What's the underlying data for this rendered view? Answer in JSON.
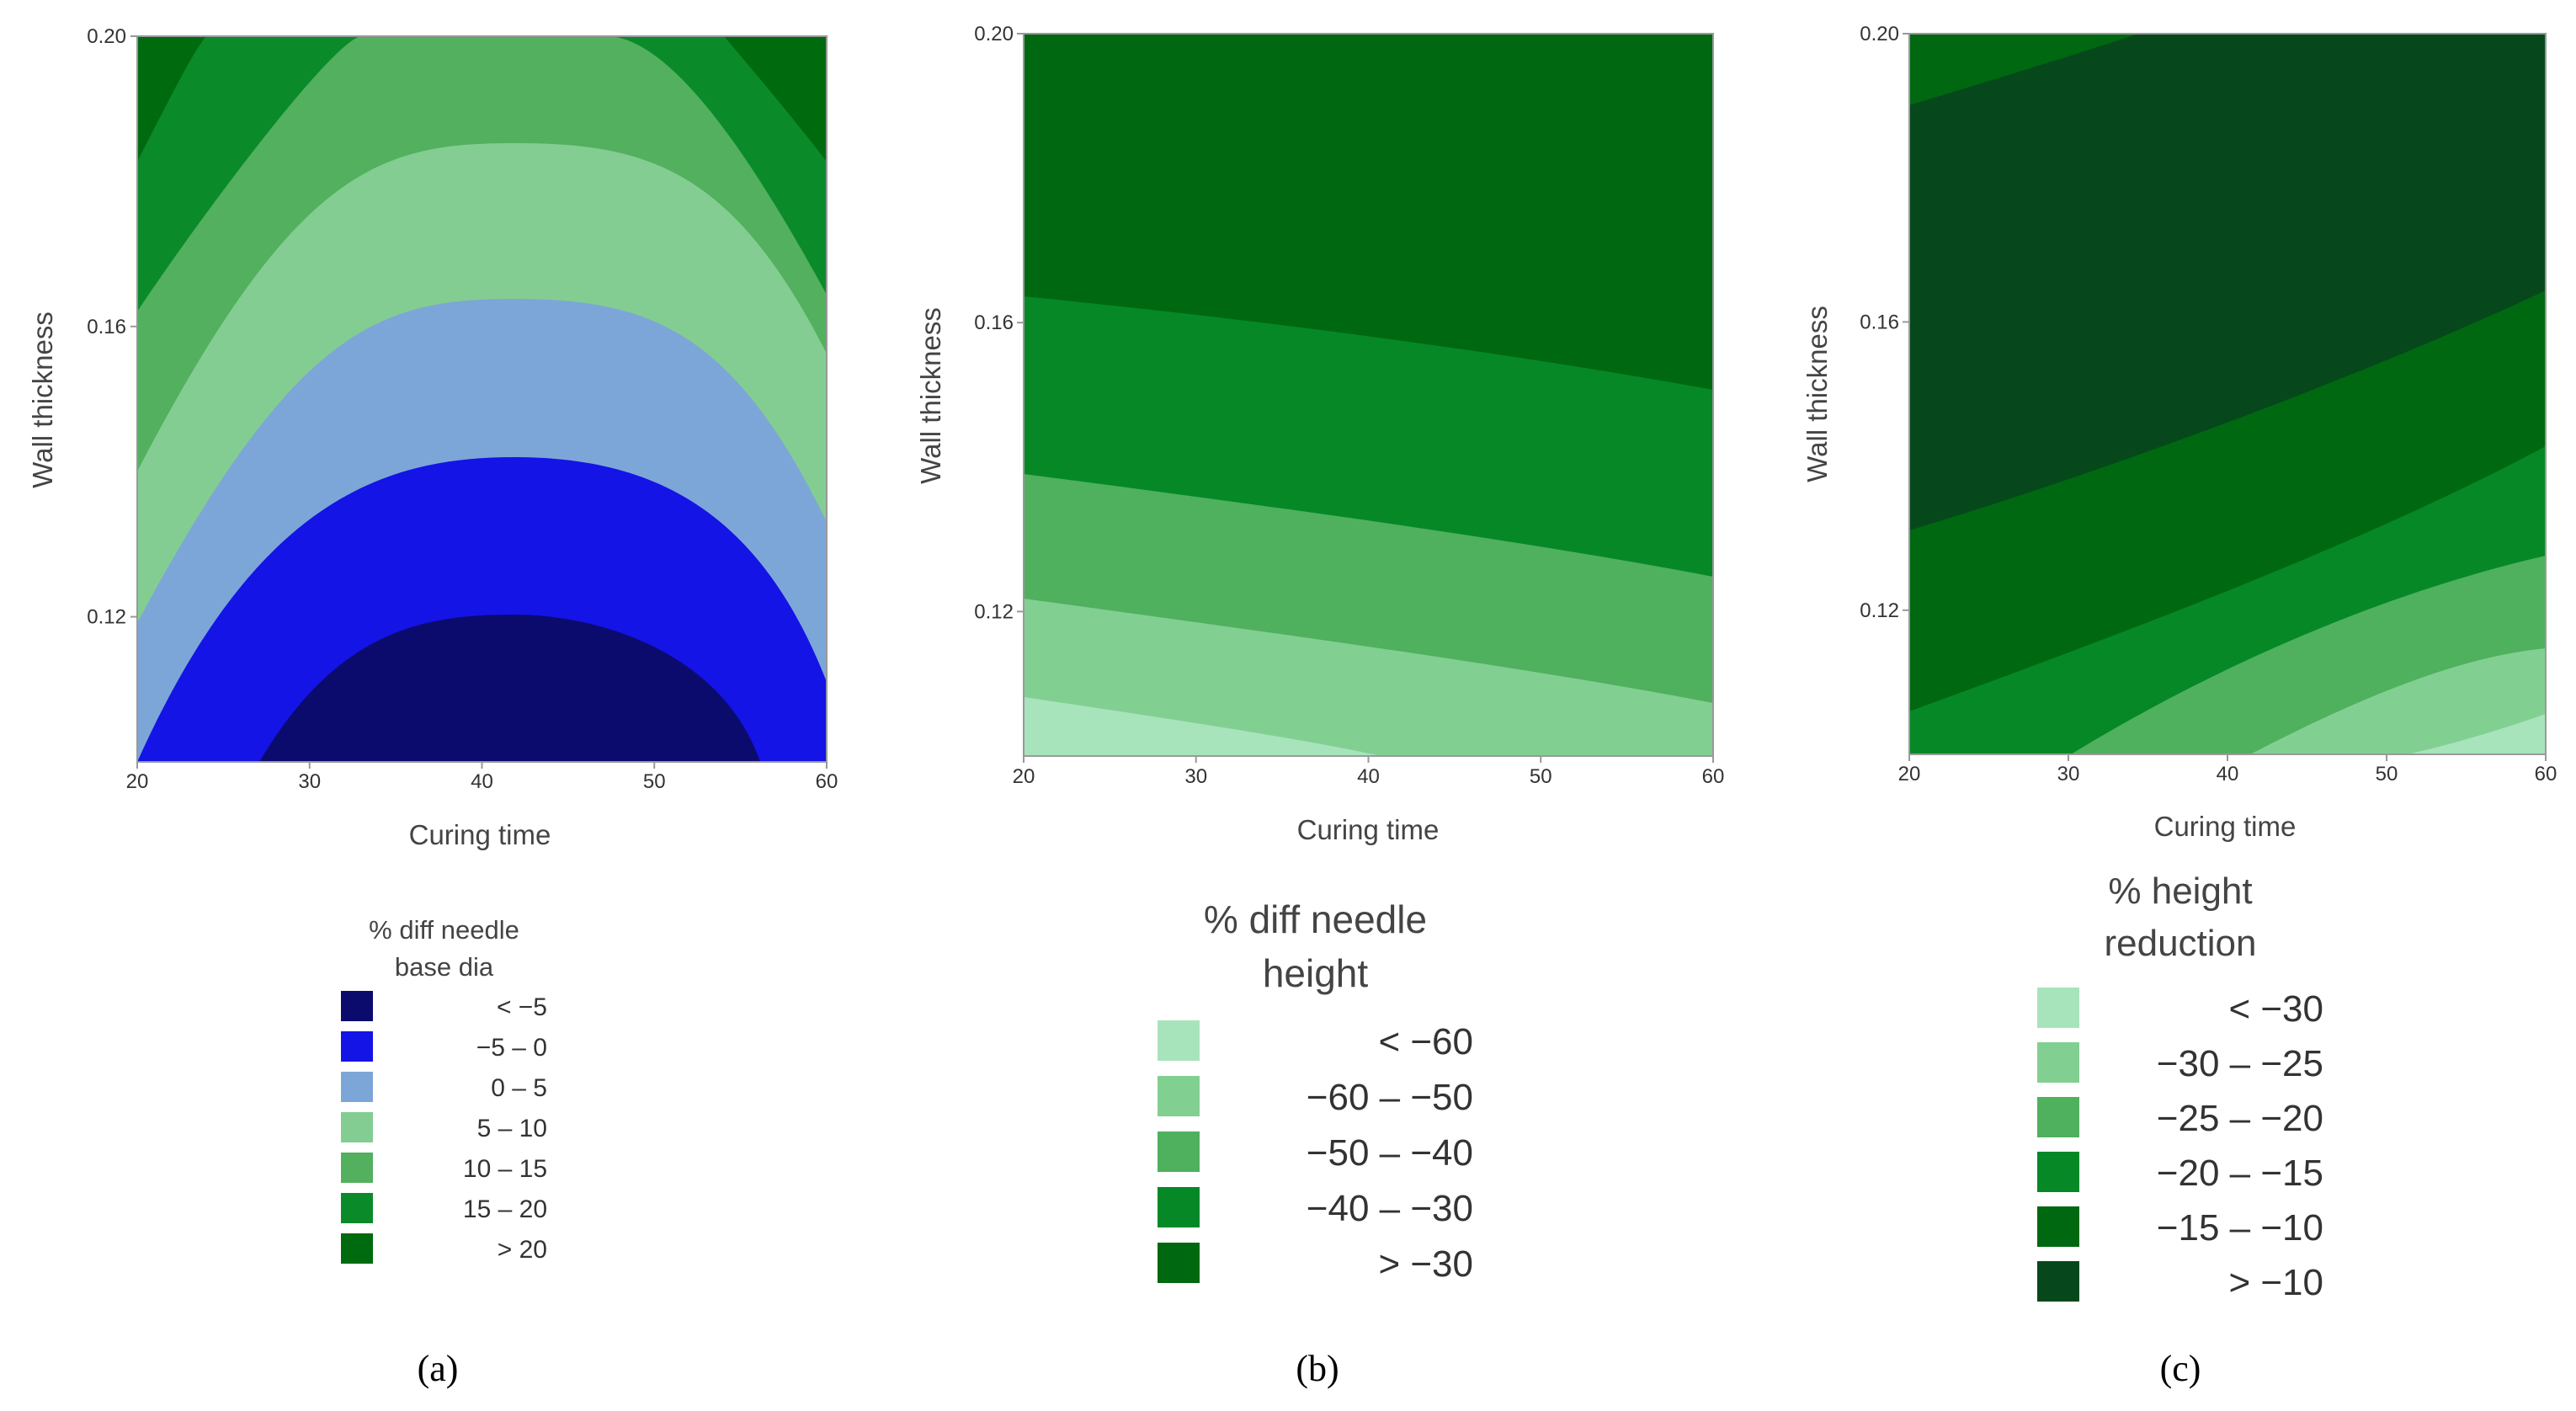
{
  "chart_data": [
    {
      "type": "contour",
      "id": "a",
      "caption": "(a)",
      "xlabel": "Curing time",
      "ylabel": "Wall thickness",
      "xlim": [
        20,
        60
      ],
      "ylim": [
        0.1,
        0.2
      ],
      "xticks": [
        "20",
        "30",
        "40",
        "50",
        "60"
      ],
      "yticks": [
        "0.12",
        "0.16",
        "0.20"
      ],
      "legend_title": [
        "% diff needle",
        "base dia"
      ],
      "legend": [
        {
          "label": "<  −5",
          "color": "#0b0b6e"
        },
        {
          "label": "−5 –  0",
          "color": "#1414e6"
        },
        {
          "label": "0 –  5",
          "color": "#7ca6d8"
        },
        {
          "label": "5 –  10",
          "color": "#83cd92"
        },
        {
          "label": "10 –  15",
          "color": "#52b05e"
        },
        {
          "label": "15 –  20",
          "color": "#0b8a2a"
        },
        {
          "label": ">  20",
          "color": "#006a0e"
        }
      ],
      "contours": [
        {
          "level": -5,
          "curing_time": [
            27,
            30,
            35,
            42,
            50,
            55,
            56
          ],
          "wall_thickness": [
            0.1,
            0.1055,
            0.1145,
            0.12,
            0.1145,
            0.1025,
            0.1
          ]
        },
        {
          "level": 0,
          "curing_time": [
            20,
            25,
            30,
            42,
            55,
            60
          ],
          "wall_thickness": [
            0.1,
            0.11,
            0.128,
            0.1415,
            0.125,
            0.1085
          ]
        },
        {
          "level": 5,
          "curing_time": [
            20,
            25,
            30,
            42,
            55,
            60
          ],
          "wall_thickness": [
            0.1185,
            0.1325,
            0.148,
            0.1635,
            0.148,
            0.1325
          ]
        },
        {
          "level": 10,
          "curing_time": [
            20,
            25,
            30,
            42,
            55,
            60
          ],
          "wall_thickness": [
            0.14,
            0.1545,
            0.17,
            0.1855,
            0.17,
            0.1545
          ]
        },
        {
          "level": 15,
          "curing_time": [
            20,
            25,
            30,
            35,
            50,
            55,
            60
          ],
          "wall_thickness": [
            0.162,
            0.1765,
            0.192,
            0.2,
            0.2,
            0.192,
            0.1765
          ]
        },
        {
          "level": 20,
          "curing_time": [
            20,
            21,
            23,
            24
          ],
          "wall_thickness": [
            0.184,
            0.19,
            0.2,
            0.2
          ]
        }
      ]
    },
    {
      "type": "contour",
      "id": "b",
      "caption": "(b)",
      "xlabel": "Curing time",
      "ylabel": "Wall thickness",
      "xlim": [
        20,
        60
      ],
      "ylim": [
        0.1,
        0.2
      ],
      "xticks": [
        "20",
        "30",
        "40",
        "50",
        "60"
      ],
      "yticks": [
        "0.12",
        "0.16",
        "0.20"
      ],
      "legend_title": [
        "% diff needle",
        "height"
      ],
      "legend": [
        {
          "label": "<  −60",
          "color": "#a8e4bb"
        },
        {
          "label": "−60  –  −50",
          "color": "#82cf92"
        },
        {
          "label": "−50  –  −40",
          "color": "#4fb05e"
        },
        {
          "label": "−40  –  −30",
          "color": "#068827"
        },
        {
          "label": ">  −30",
          "color": "#006810"
        }
      ],
      "contours": [
        {
          "level": -60,
          "curing_time": [
            20,
            40
          ],
          "wall_thickness": [
            0.1075,
            0.1
          ]
        },
        {
          "level": -50,
          "curing_time": [
            20,
            60
          ],
          "wall_thickness": [
            0.1225,
            0.1075
          ]
        },
        {
          "level": -40,
          "curing_time": [
            20,
            60
          ],
          "wall_thickness": [
            0.139,
            0.1245
          ]
        },
        {
          "level": -30,
          "curing_time": [
            20,
            60
          ],
          "wall_thickness": [
            0.164,
            0.1505
          ]
        }
      ]
    },
    {
      "type": "contour",
      "id": "c",
      "caption": "(c)",
      "xlabel": "Curing time",
      "ylabel": "Wall thickness",
      "xlim": [
        20,
        60
      ],
      "ylim": [
        0.1,
        0.2
      ],
      "xticks": [
        "20",
        "30",
        "40",
        "50",
        "60"
      ],
      "yticks": [
        "0.12",
        "0.16",
        "0.20"
      ],
      "legend_title": [
        "% height",
        "reduction"
      ],
      "legend": [
        {
          "label": "<  −30",
          "color": "#a8e4bb"
        },
        {
          "label": "−30  –  −25",
          "color": "#82cf92"
        },
        {
          "label": "−25  –  −20",
          "color": "#4fb05e"
        },
        {
          "label": "−20  –  −15",
          "color": "#068827"
        },
        {
          "label": "−15  –  −10",
          "color": "#006810"
        },
        {
          "label": ">  −10",
          "color": "#06481b"
        }
      ],
      "contours": [
        {
          "level": -30,
          "curing_time": [
            49,
            55,
            60
          ],
          "wall_thickness": [
            0.1,
            0.1045,
            0.1115
          ]
        },
        {
          "level": -25,
          "curing_time": [
            38,
            45,
            52,
            60
          ],
          "wall_thickness": [
            0.1,
            0.1085,
            0.1185,
            0.1265
          ]
        },
        {
          "level": -20,
          "curing_time": [
            30,
            35,
            45,
            60
          ],
          "wall_thickness": [
            0.1,
            0.109,
            0.1255,
            0.1415
          ]
        },
        {
          "level": -15,
          "curing_time": [
            20,
            25,
            30,
            40,
            50,
            60
          ],
          "wall_thickness": [
            0.1065,
            0.1175,
            0.125,
            0.1365,
            0.1465,
            0.1525
          ]
        },
        {
          "level": -10,
          "curing_time": [
            20,
            25,
            35,
            45,
            60
          ],
          "wall_thickness": [
            0.1315,
            0.1375,
            0.1465,
            0.1545,
            0.1645
          ]
        },
        {
          "level": -15,
          "curing_time": [
            20,
            25,
            30,
            33
          ],
          "wall_thickness": [
            0.1905,
            0.1935,
            0.197,
            0.2
          ]
        }
      ]
    }
  ]
}
